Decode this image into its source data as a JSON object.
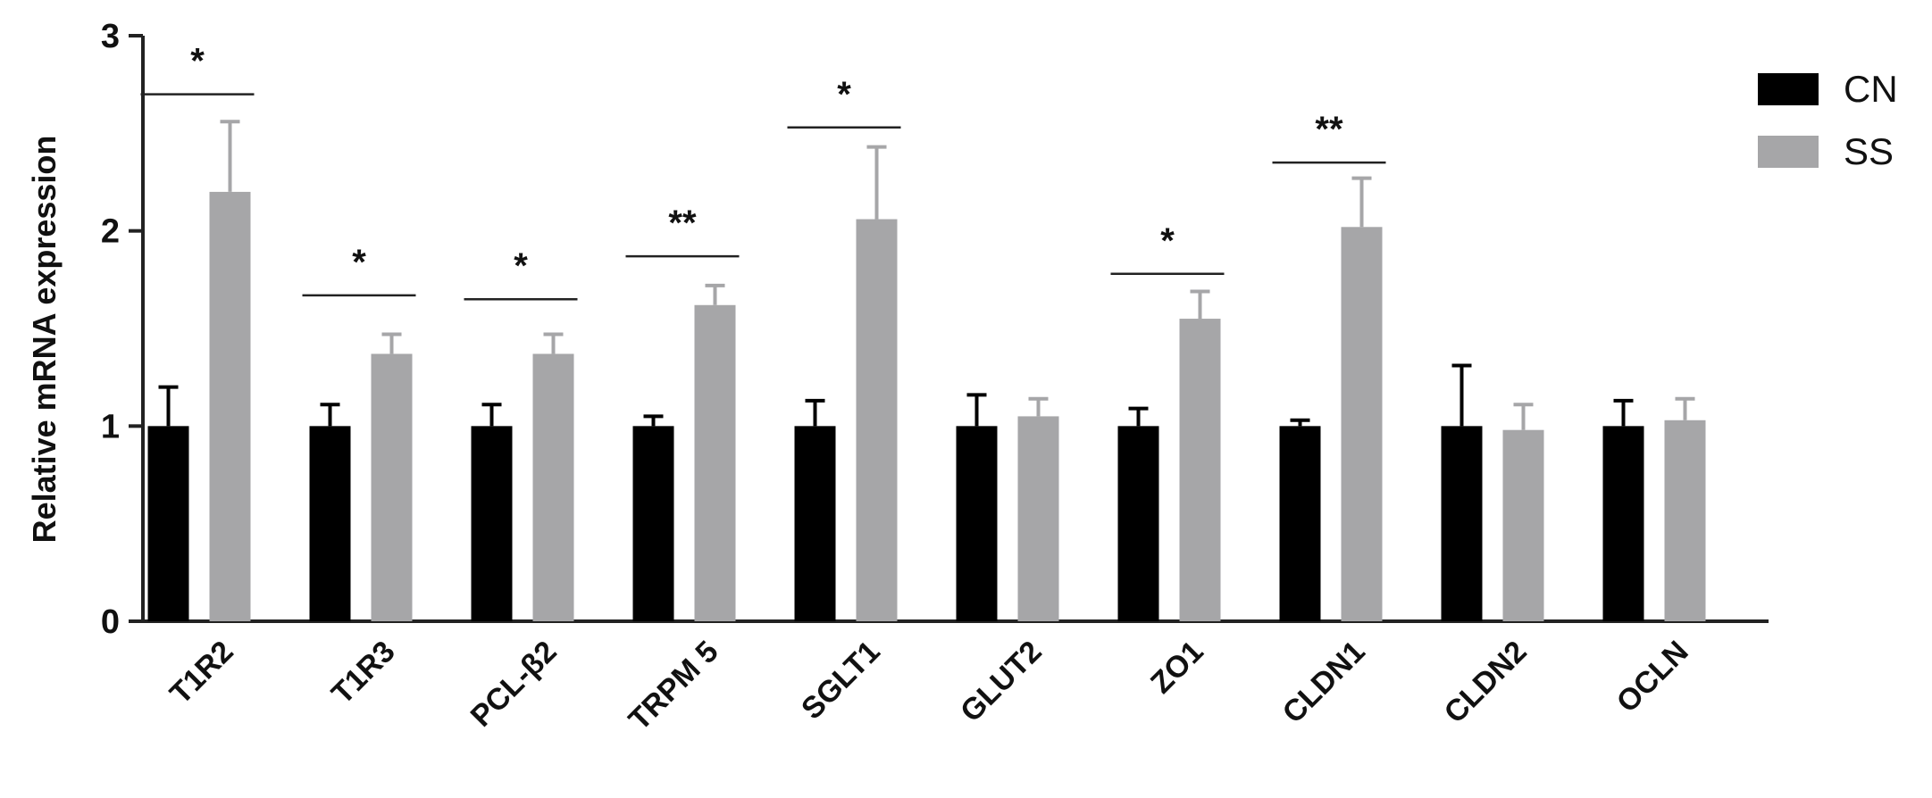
{
  "chart_data": {
    "type": "bar",
    "ylabel": "Relative mRNA expression",
    "xlabel": "",
    "ylim": [
      0,
      3
    ],
    "yticks": [
      0,
      1,
      2,
      3
    ],
    "categories": [
      "T1R2",
      "T1R3",
      "PCL-β2",
      "TRPM 5",
      "SGLT1",
      "GLUT2",
      "ZO1",
      "CLDN1",
      "CLDN2",
      "OCLN"
    ],
    "series": [
      {
        "name": "CN",
        "color": "#000000",
        "values": [
          1.0,
          1.0,
          1.0,
          1.0,
          1.0,
          1.0,
          1.0,
          1.0,
          1.0,
          1.0
        ],
        "errors": [
          0.2,
          0.11,
          0.11,
          0.05,
          0.13,
          0.16,
          0.09,
          0.03,
          0.31,
          0.13
        ]
      },
      {
        "name": "SS",
        "color": "#a6a6a8",
        "values": [
          2.2,
          1.37,
          1.37,
          1.62,
          2.06,
          1.05,
          1.55,
          2.02,
          0.98,
          1.03
        ],
        "errors": [
          0.36,
          0.1,
          0.1,
          0.1,
          0.37,
          0.09,
          0.14,
          0.25,
          0.13,
          0.11
        ]
      }
    ],
    "significance": [
      {
        "category": "T1R2",
        "label": "*",
        "y": 2.7
      },
      {
        "category": "T1R3",
        "label": "*",
        "y": 1.67
      },
      {
        "category": "PCL-β2",
        "label": "*",
        "y": 1.65
      },
      {
        "category": "TRPM 5",
        "label": "**",
        "y": 1.87
      },
      {
        "category": "SGLT1",
        "label": "*",
        "y": 2.53
      },
      {
        "category": "ZO1",
        "label": "*",
        "y": 1.78
      },
      {
        "category": "CLDN1",
        "label": "**",
        "y": 2.35
      }
    ],
    "legend_position": "top-right",
    "grid": false
  }
}
